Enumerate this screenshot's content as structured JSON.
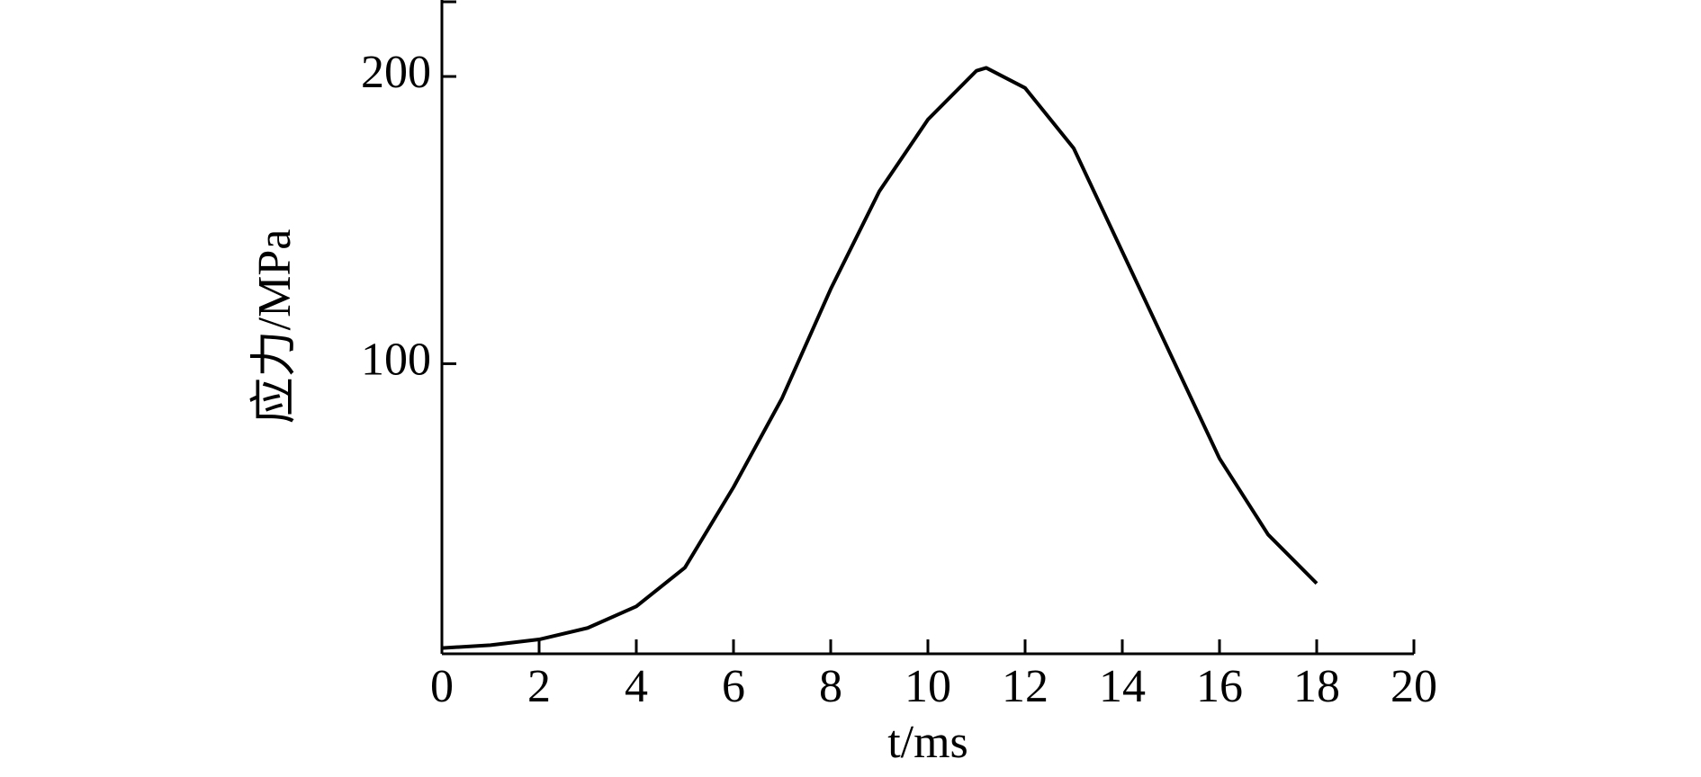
{
  "chart_data": {
    "type": "line",
    "xlabel": "t/ms",
    "ylabel": "应力/MPa",
    "x": [
      0,
      1,
      2,
      3,
      4,
      5,
      6,
      7,
      8,
      9,
      10,
      11,
      11.2,
      12,
      13,
      14,
      15,
      16,
      17,
      18
    ],
    "series": [
      {
        "color": "#000000",
        "values": [
          1,
          2,
          4,
          8,
          15.5,
          29,
          57,
          88,
          126,
          160,
          185,
          202,
          203,
          196,
          175,
          139,
          103,
          67,
          40.5,
          23.5
        ]
      }
    ],
    "xlim": [
      0,
      20
    ],
    "xticks": [
      0,
      2,
      4,
      6,
      8,
      10,
      12,
      14,
      16,
      18,
      20
    ],
    "ylim": [
      -1,
      226
    ],
    "yticks": [
      100,
      200
    ],
    "grid": false
  }
}
